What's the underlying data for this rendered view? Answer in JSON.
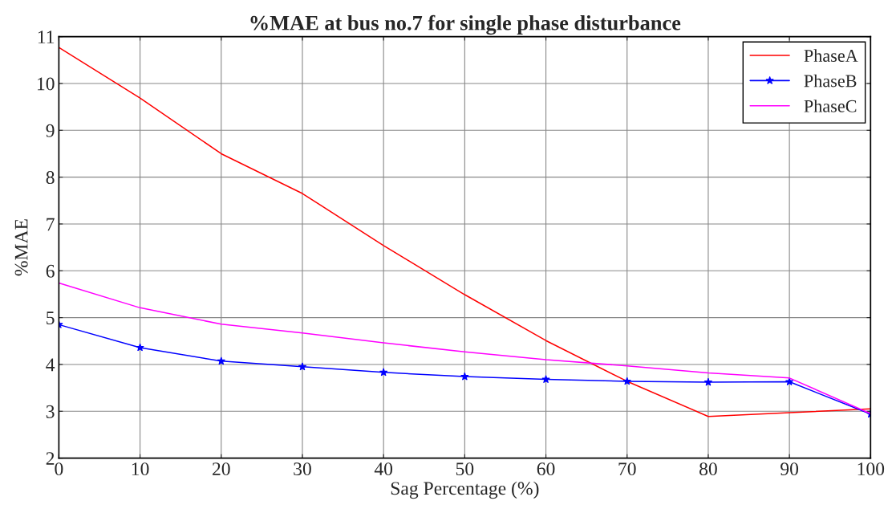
{
  "chart_data": {
    "type": "line",
    "title": "%MAE at bus no.7 for single phase disturbance",
    "xlabel": "Sag Percentage (%)",
    "ylabel": "%MAE",
    "x": [
      0,
      10,
      20,
      30,
      40,
      50,
      60,
      70,
      80,
      90,
      100
    ],
    "series": [
      {
        "name": "PhaseA",
        "color": "#ff0000",
        "marker": "none",
        "values": [
          10.77,
          9.69,
          8.5,
          7.65,
          6.54,
          5.49,
          4.51,
          3.64,
          2.89,
          2.97,
          3.05
        ]
      },
      {
        "name": "PhaseB",
        "color": "#0000ff",
        "marker": "star",
        "values": [
          4.85,
          4.36,
          4.07,
          3.95,
          3.83,
          3.74,
          3.68,
          3.64,
          3.62,
          3.63,
          2.94
        ]
      },
      {
        "name": "PhaseC",
        "color": "#ff00ff",
        "marker": "none",
        "values": [
          5.74,
          5.21,
          4.86,
          4.67,
          4.46,
          4.27,
          4.1,
          3.97,
          3.82,
          3.71,
          2.95
        ]
      }
    ],
    "xlim": [
      0,
      100
    ],
    "xticks": [
      0,
      10,
      20,
      30,
      40,
      50,
      60,
      70,
      80,
      90,
      100
    ],
    "ylim": [
      2,
      11
    ],
    "yticks": [
      2,
      3,
      4,
      5,
      6,
      7,
      8,
      9,
      10,
      11
    ],
    "grid": true,
    "legend": "top right",
    "line_style": "solid"
  }
}
